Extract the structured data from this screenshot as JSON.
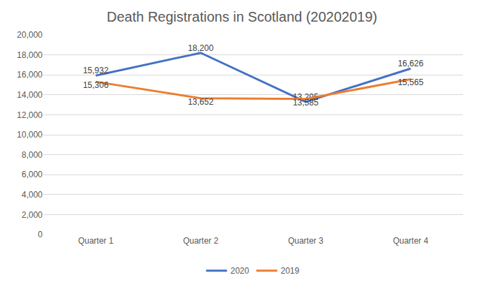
{
  "chart_data": {
    "type": "line",
    "title": "Death Registrations in Scotland (20202019)",
    "categories": [
      "Quarter 1",
      "Quarter 2",
      "Quarter 3",
      "Quarter 4"
    ],
    "series": [
      {
        "name": "2020",
        "color": "#4472c4",
        "values": [
          15932,
          18200,
          13295,
          16626
        ],
        "value_labels": [
          "15,932",
          "18,200",
          "13,295",
          "16,626"
        ]
      },
      {
        "name": "2019",
        "color": "#ed7d31",
        "values": [
          15306,
          13652,
          13585,
          15565
        ],
        "value_labels": [
          "15,306",
          "13,652",
          "13,585",
          "15,565"
        ]
      }
    ],
    "ylim": [
      0,
      20000
    ],
    "yticks": [
      0,
      {
        "value": 2000,
        "label": "2,000"
      },
      {
        "value": 4000,
        "label": "4,000"
      },
      {
        "value": 6000,
        "label": "6,000"
      },
      {
        "value": 8000,
        "label": "8,000"
      },
      {
        "value": 10000,
        "label": "10,000"
      },
      {
        "value": 12000,
        "label": "12,000"
      },
      {
        "value": 14000,
        "label": "14,000"
      },
      {
        "value": 16000,
        "label": "16,000"
      },
      {
        "value": 18000,
        "label": "18,000"
      },
      {
        "value": 20000,
        "label": "20,000"
      }
    ],
    "grid": true,
    "legend": "bottom",
    "data_labels": true
  }
}
